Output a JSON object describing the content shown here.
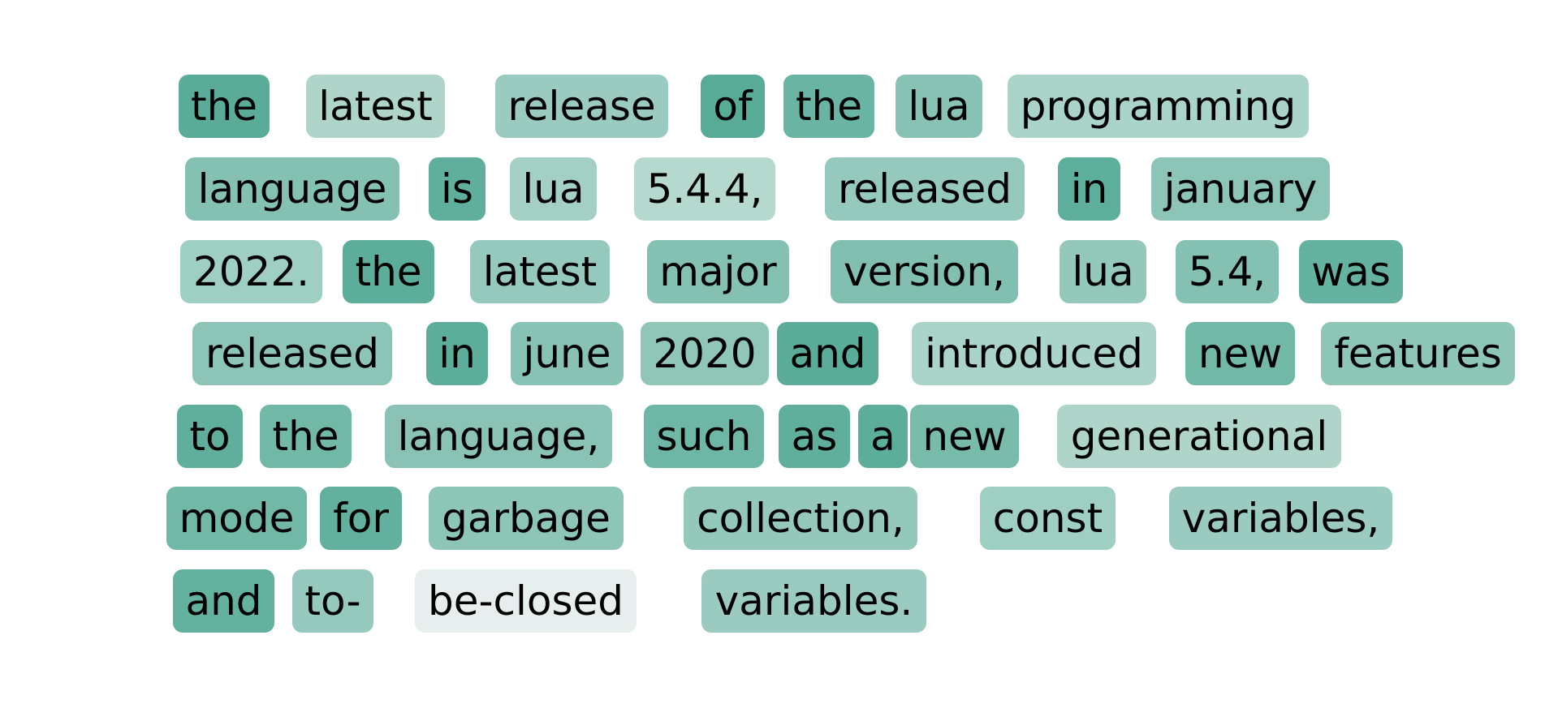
{
  "heatmap": {
    "color_scale": {
      "low": "#eef3f1",
      "high": "#57ab97"
    },
    "tokens": [
      {
        "text": "the",
        "weight": 0.98
      },
      {
        "text": "latest",
        "weight": 0.42
      },
      {
        "text": "release",
        "weight": 0.55
      },
      {
        "text": "of",
        "weight": 1.0
      },
      {
        "text": "the",
        "weight": 0.88
      },
      {
        "text": "lua",
        "weight": 0.68
      },
      {
        "text": "programming",
        "weight": 0.45
      },
      {
        "text": "language",
        "weight": 0.7
      },
      {
        "text": "is",
        "weight": 0.95
      },
      {
        "text": "lua",
        "weight": 0.5
      },
      {
        "text": "5.4.4,",
        "weight": 0.38
      },
      {
        "text": "released",
        "weight": 0.58
      },
      {
        "text": "in",
        "weight": 0.96
      },
      {
        "text": "january",
        "weight": 0.65
      },
      {
        "text": "2022.",
        "weight": 0.52
      },
      {
        "text": "the",
        "weight": 0.97
      },
      {
        "text": "latest",
        "weight": 0.58
      },
      {
        "text": "major",
        "weight": 0.7
      },
      {
        "text": "version,",
        "weight": 0.72
      },
      {
        "text": "lua",
        "weight": 0.6
      },
      {
        "text": "5.4,",
        "weight": 0.7
      },
      {
        "text": "was",
        "weight": 0.9
      },
      {
        "text": "released",
        "weight": 0.65
      },
      {
        "text": "in",
        "weight": 0.97
      },
      {
        "text": "june",
        "weight": 0.68
      },
      {
        "text": "2020",
        "weight": 0.63
      },
      {
        "text": "and",
        "weight": 0.98
      },
      {
        "text": "introduced",
        "weight": 0.45
      },
      {
        "text": "new",
        "weight": 0.82
      },
      {
        "text": "features",
        "weight": 0.64
      },
      {
        "text": "to",
        "weight": 0.94
      },
      {
        "text": "the",
        "weight": 0.82
      },
      {
        "text": "language,",
        "weight": 0.66
      },
      {
        "text": "such",
        "weight": 0.85
      },
      {
        "text": "as",
        "weight": 0.95
      },
      {
        "text": "a",
        "weight": 0.97
      },
      {
        "text": "new",
        "weight": 0.78
      },
      {
        "text": "generational",
        "weight": 0.42
      },
      {
        "text": "mode",
        "weight": 0.82
      },
      {
        "text": "for",
        "weight": 0.93
      },
      {
        "text": "garbage",
        "weight": 0.64
      },
      {
        "text": "collection,",
        "weight": 0.6
      },
      {
        "text": "const",
        "weight": 0.52
      },
      {
        "text": "variables,",
        "weight": 0.55
      },
      {
        "text": "and",
        "weight": 0.92
      },
      {
        "text": "to-",
        "weight": 0.58
      },
      {
        "text": "be-closed",
        "weight": 0.05
      },
      {
        "text": "variables.",
        "weight": 0.55
      }
    ]
  }
}
